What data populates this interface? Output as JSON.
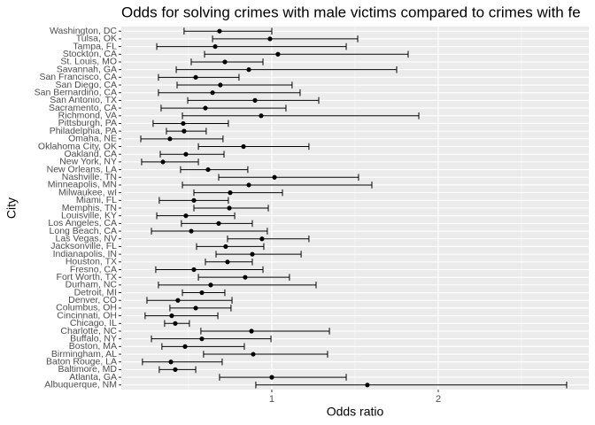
{
  "chart_data": {
    "type": "forest",
    "title": "Odds for solving crimes with male victims compared to crimes with fe",
    "x_label": "Odds ratio",
    "y_label": "City",
    "categories": [
      "Washington, DC",
      "Tulsa, OK",
      "Tampa, FL",
      "Stockton, CA",
      "St. Louis, MO",
      "Savannah, GA",
      "San Francisco, CA",
      "San Diego, CA",
      "San Bernardino, CA",
      "San Antonio, TX",
      "Sacramento, CA",
      "Richmond, VA",
      "Pittsburgh, PA",
      "Philadelphia, PA",
      "Omaha, NE",
      "Oklahoma City, OK",
      "Oakland, CA",
      "New York, NY",
      "New Orleans, LA",
      "Nashville, TN",
      "Minneapolis, MN",
      "Milwaukee, wI",
      "Miami, FL",
      "Memphis, TN",
      "Louisville, KY",
      "Los Angeles, CA",
      "Long Beach, CA",
      "Las Vegas, NV",
      "Jacksonville, FL",
      "Indianapolis, IN",
      "Houston, TX",
      "Fresno, CA",
      "Fort Worth, TX",
      "Durham, NC",
      "Detroit, MI",
      "Denver, CO",
      "Columbus, OH",
      "Cincinnati, OH",
      "Chicago, IL",
      "Charlotte, NC",
      "Buffalo, NY",
      "Boston, MA",
      "Birmingham, AL",
      "Baton Rouge, LA",
      "Baltimore, MD",
      "Atlanta, GA",
      "Albuquerque, NM"
    ],
    "values": [
      0.686,
      0.989,
      0.66,
      1.037,
      0.718,
      0.862,
      0.543,
      0.691,
      0.644,
      0.899,
      0.601,
      0.936,
      0.468,
      0.473,
      0.388,
      0.83,
      0.484,
      0.346,
      0.617,
      1.016,
      0.862,
      0.75,
      0.532,
      0.745,
      0.484,
      0.681,
      0.516,
      0.941,
      0.723,
      0.883,
      0.734,
      0.532,
      0.84,
      0.633,
      0.58,
      0.436,
      0.543,
      0.399,
      0.42,
      0.878,
      0.58,
      0.479,
      0.888,
      0.394,
      0.42,
      1.0,
      1.574
    ],
    "lower": [
      0.473,
      0.644,
      0.309,
      0.596,
      0.516,
      0.426,
      0.319,
      0.431,
      0.319,
      0.495,
      0.335,
      0.463,
      0.287,
      0.367,
      0.213,
      0.559,
      0.33,
      0.218,
      0.452,
      0.681,
      0.463,
      0.532,
      0.324,
      0.532,
      0.309,
      0.457,
      0.277,
      0.734,
      0.548,
      0.665,
      0.601,
      0.303,
      0.559,
      0.319,
      0.463,
      0.25,
      0.388,
      0.239,
      0.356,
      0.574,
      0.277,
      0.34,
      0.59,
      0.223,
      0.324,
      0.686,
      0.904
    ],
    "upper": [
      1.0,
      1.516,
      1.447,
      1.819,
      0.947,
      1.75,
      0.803,
      1.122,
      1.17,
      1.282,
      1.085,
      1.883,
      0.739,
      0.606,
      0.707,
      1.223,
      0.713,
      0.559,
      0.856,
      1.521,
      1.601,
      1.064,
      0.739,
      0.979,
      0.777,
      0.883,
      0.973,
      1.223,
      0.952,
      1.176,
      0.883,
      0.947,
      1.106,
      1.266,
      0.718,
      0.761,
      0.755,
      0.676,
      0.505,
      1.346,
      0.995,
      0.835,
      1.335,
      0.702,
      0.543,
      1.447,
      2.771
    ],
    "color": "#000000",
    "xlim": [
      0.096,
      2.904
    ],
    "xticks": [
      1,
      2
    ],
    "grid": true
  }
}
